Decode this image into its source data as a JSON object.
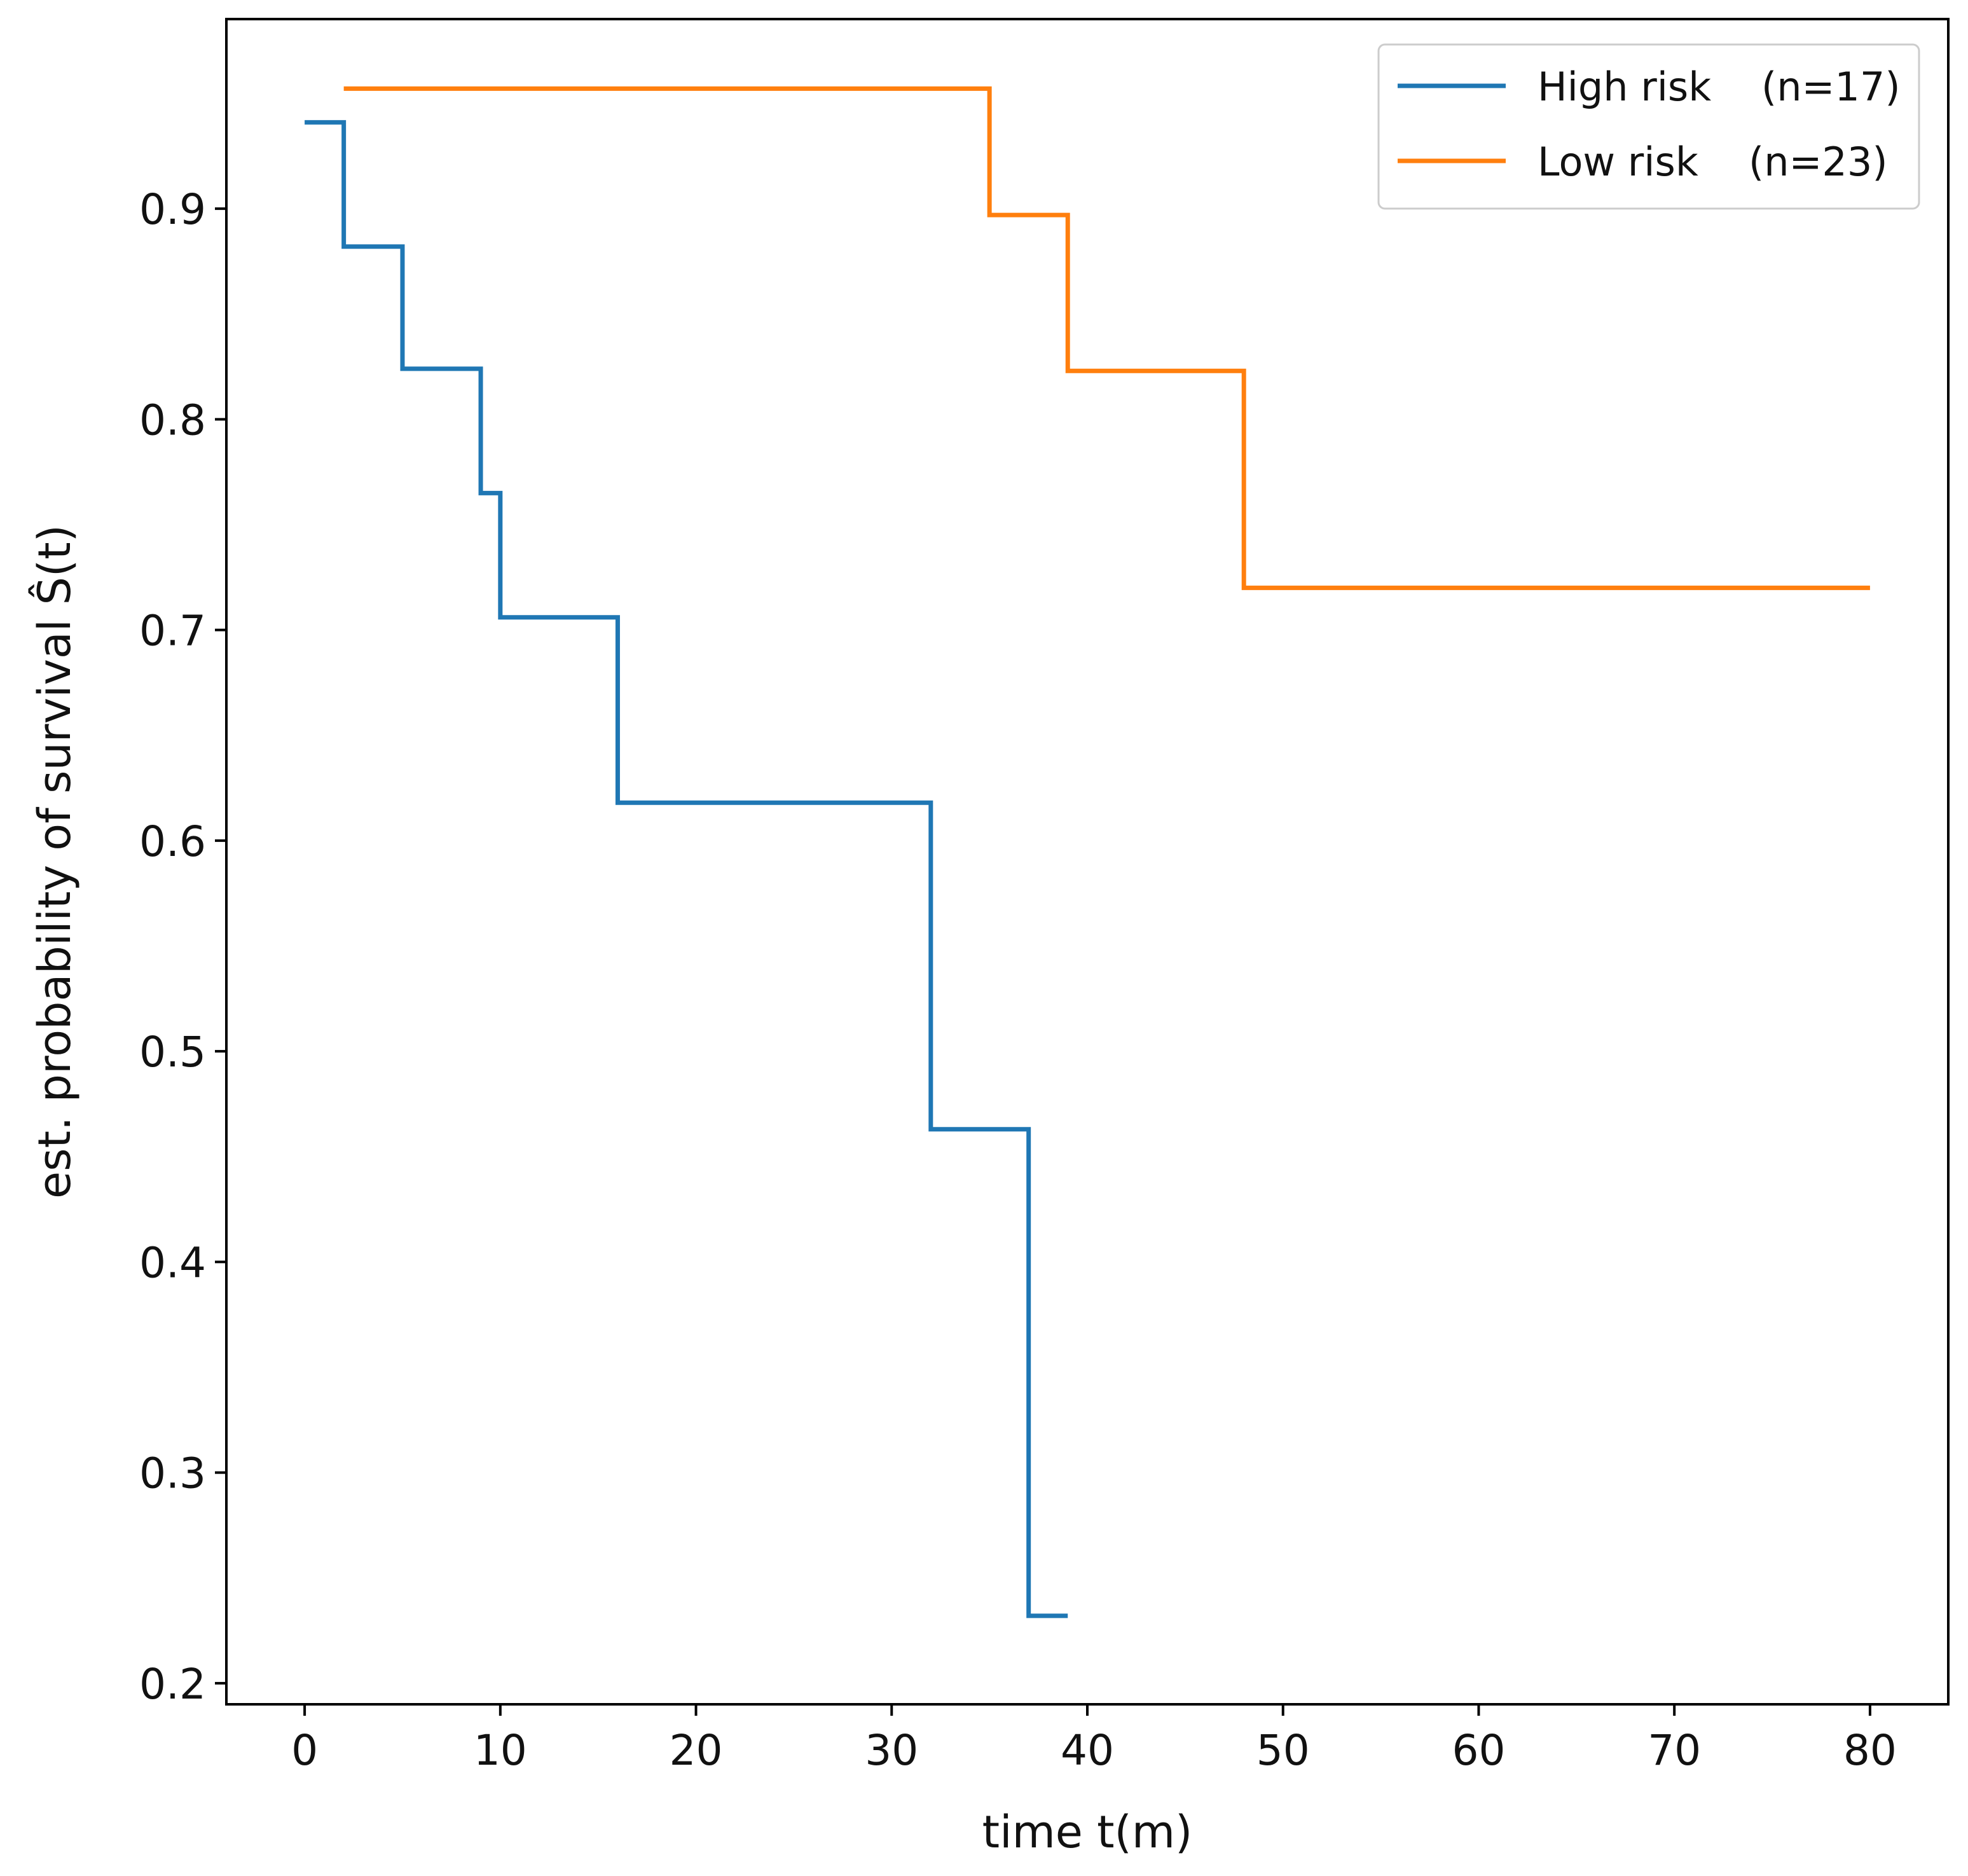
{
  "chart_data": {
    "type": "line",
    "step": true,
    "title": "",
    "xlabel": "time t(m)",
    "ylabel": "est. probability of survival Ŝ(t)",
    "xlim": [
      -4,
      84
    ],
    "ylim": [
      0.19,
      0.99
    ],
    "xticks": [
      "0",
      "10",
      "20",
      "30",
      "40",
      "50",
      "60",
      "70",
      "80"
    ],
    "yticks": [
      "0.2",
      "0.3",
      "0.4",
      "0.5",
      "0.6",
      "0.7",
      "0.8",
      "0.9"
    ],
    "legend_position": "top-right",
    "series": [
      {
        "name": "High risk",
        "n_label": "(n=17)",
        "color": "#1f77b4",
        "x": [
          0,
          2,
          5,
          9,
          10,
          16,
          32,
          37,
          39
        ],
        "y": [
          0.941,
          0.882,
          0.824,
          0.765,
          0.706,
          0.618,
          0.463,
          0.232,
          0.232
        ]
      },
      {
        "name": "Low risk",
        "n_label": "(n=23)",
        "color": "#ff7f0e",
        "x": [
          2,
          35,
          39,
          48,
          80
        ],
        "y": [
          0.957,
          0.897,
          0.823,
          0.72,
          0.72
        ]
      }
    ]
  }
}
